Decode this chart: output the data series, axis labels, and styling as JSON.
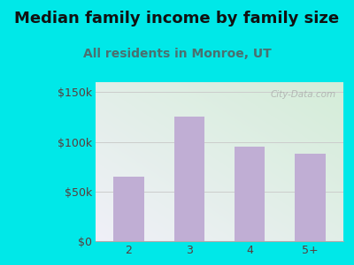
{
  "categories": [
    "2",
    "3",
    "4",
    "5+"
  ],
  "values": [
    65000,
    125000,
    95000,
    88000
  ],
  "bar_color": "#c0aed4",
  "background_color": "#00e8e8",
  "plot_bg_top_left": "#d4edd8",
  "plot_bg_bottom_right": "#f0f0f8",
  "title": "Median family income by family size",
  "subtitle": "All residents in Monroe, UT",
  "title_color": "#111111",
  "subtitle_color": "#4a7070",
  "tick_label_color": "#5a3a3a",
  "yticks": [
    0,
    50000,
    100000,
    150000
  ],
  "ytick_labels": [
    "$0",
    "$50k",
    "$100k",
    "$150k"
  ],
  "ylim": [
    0,
    160000
  ],
  "watermark": "City-Data.com",
  "title_fontsize": 13,
  "subtitle_fontsize": 10,
  "tick_fontsize": 9,
  "grid_color": "#cccccc"
}
